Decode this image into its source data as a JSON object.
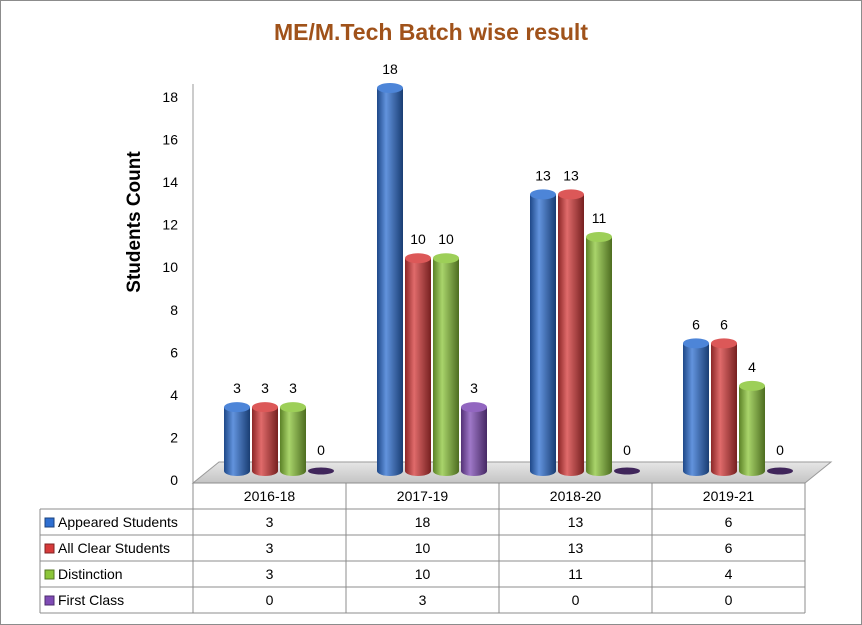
{
  "chart_data": {
    "type": "bar",
    "title": "ME/M.Tech Batch wise result",
    "xlabel": "",
    "ylabel": "Students Count",
    "ylim": [
      0,
      18
    ],
    "yticks": [
      "0",
      "2",
      "4",
      "6",
      "8",
      "10",
      "12",
      "14",
      "16",
      "18"
    ],
    "categories": [
      "2016-18",
      "2017-19",
      "2018-20",
      "2019-21"
    ],
    "series": [
      {
        "name": "Appeared Students",
        "color": "#2e6fd1",
        "values": [
          3,
          18,
          13,
          6
        ]
      },
      {
        "name": "All Clear Students",
        "color": "#d63a3a",
        "values": [
          3,
          10,
          13,
          6
        ]
      },
      {
        "name": "Distinction",
        "color": "#8cc63a",
        "values": [
          3,
          10,
          11,
          4
        ]
      },
      {
        "name": "First Class",
        "color": "#7f4bb5",
        "values": [
          0,
          3,
          0,
          0
        ]
      }
    ],
    "grid": false,
    "legend": "data-table"
  }
}
